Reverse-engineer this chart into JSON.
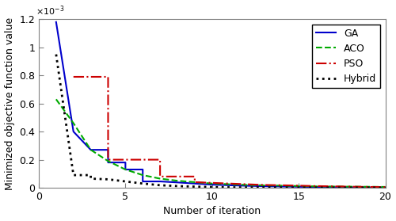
{
  "title": "",
  "xlabel": "Number of iteration",
  "ylabel": "Minimized objective function value",
  "xlim": [
    0,
    20
  ],
  "ylim": [
    0,
    0.0012
  ],
  "ytick_vals": [
    0,
    0.0002,
    0.0004,
    0.0006,
    0.0008,
    0.001,
    0.0012
  ],
  "ytick_labels": [
    "0",
    "0.2",
    "0.4",
    "0.6",
    "0.8",
    "1",
    "1.2"
  ],
  "xtick_vals": [
    0,
    5,
    10,
    15,
    20
  ],
  "xtick_labels": [
    "0",
    "5",
    "10",
    "15",
    "20"
  ],
  "GA": {
    "x": [
      1,
      2,
      3,
      4,
      4,
      5,
      5,
      6,
      6,
      7,
      8,
      9,
      10,
      11,
      12,
      13,
      14,
      15,
      16,
      17,
      18,
      19,
      20
    ],
    "y": [
      0.00118,
      0.0004,
      0.00027,
      0.00027,
      0.00018,
      0.00018,
      0.00013,
      0.00013,
      4.5e-05,
      4.5e-05,
      3.8e-05,
      3e-05,
      2.2e-05,
      1.8e-05,
      1.4e-05,
      1.1e-05,
      9e-06,
      7e-06,
      5e-06,
      4e-06,
      3e-06,
      2e-06,
      1e-06
    ],
    "color": "#0000CC",
    "linestyle": "-",
    "linewidth": 1.5,
    "label": "GA"
  },
  "ACO": {
    "x": [
      1,
      2,
      3,
      4,
      5,
      6,
      7,
      8,
      9,
      10,
      11,
      12,
      13,
      14,
      15,
      16,
      17,
      18,
      19,
      20
    ],
    "y": [
      0.00063,
      0.00046,
      0.00027,
      0.00019,
      0.00013,
      9e-05,
      6.5e-05,
      5e-05,
      4e-05,
      3e-05,
      2.5e-05,
      2e-05,
      1.7e-05,
      1.5e-05,
      1.2e-05,
      1e-05,
      9e-06,
      8e-06,
      7e-06,
      6e-06
    ],
    "color": "#00AA00",
    "linestyle": "--",
    "linewidth": 1.5,
    "label": "ACO"
  },
  "PSO": {
    "x": [
      2,
      4,
      4,
      5,
      5,
      7,
      7,
      9,
      9,
      10,
      11,
      12,
      13,
      14,
      15,
      16,
      17,
      18,
      19,
      20
    ],
    "y": [
      0.00079,
      0.00079,
      0.0002,
      0.0002,
      0.0002,
      0.0002,
      8e-05,
      8e-05,
      4e-05,
      3.5e-05,
      3e-05,
      2.5e-05,
      2e-05,
      1.8e-05,
      1.5e-05,
      1.2e-05,
      1e-05,
      8e-06,
      6e-06,
      5e-06
    ],
    "color": "#CC0000",
    "linestyle": "-.",
    "linewidth": 1.5,
    "label": "PSO"
  },
  "Hybrid": {
    "x": [
      1,
      2,
      3,
      3,
      4,
      5,
      6,
      7,
      8,
      9,
      10,
      11,
      12,
      13,
      14,
      15,
      16,
      17,
      18,
      19,
      20
    ],
    "y": [
      0.00095,
      9e-05,
      9e-05,
      6.5e-05,
      6e-05,
      4.5e-05,
      3e-05,
      1.8e-05,
      1.2e-05,
      8e-06,
      5e-06,
      3e-06,
      2e-06,
      1.5e-06,
      1e-06,
      8e-07,
      6e-07,
      5e-07,
      4e-07,
      3e-07,
      2e-07
    ],
    "color": "#000000",
    "linestyle": ":",
    "linewidth": 2.0,
    "label": "Hybrid"
  },
  "legend_loc": "upper right",
  "figsize": [
    5.0,
    2.79
  ],
  "dpi": 100,
  "spine_color": "#808080",
  "bg_color": "#F0F0F0"
}
